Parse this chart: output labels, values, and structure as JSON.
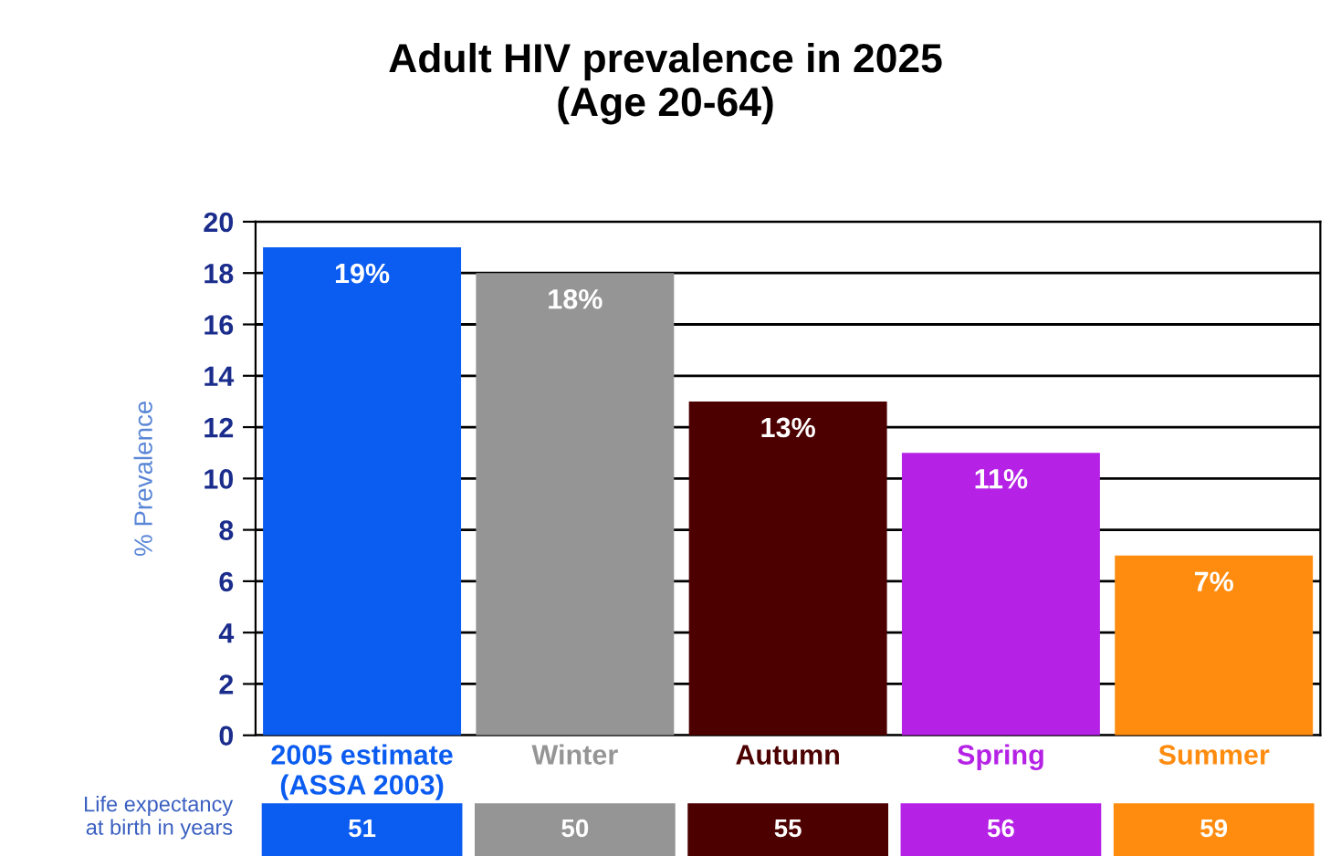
{
  "chart_data": {
    "type": "bar",
    "title": "Adult HIV prevalence in 2025\n(Age 20-64)",
    "ylabel": "% Prevalence",
    "categories": [
      "2005 estimate\n(ASSA 2003)",
      "Winter",
      "Autumn",
      "Spring",
      "Summer"
    ],
    "values": [
      19,
      18,
      13,
      11,
      7
    ],
    "colors": [
      "#0b5cf0",
      "#959595",
      "#4d0000",
      "#b522e6",
      "#ff8c0f"
    ],
    "value_labels": [
      "19%",
      "18%",
      "13%",
      "11%",
      "7%"
    ],
    "ylim": [
      0,
      20
    ],
    "yticks": [
      0,
      2,
      4,
      6,
      8,
      10,
      12,
      14,
      16,
      18,
      20
    ],
    "grid": "y",
    "annotations": [
      "Life expectancy\nat birth in years",
      "51",
      "50",
      "55",
      "56",
      "59"
    ]
  }
}
